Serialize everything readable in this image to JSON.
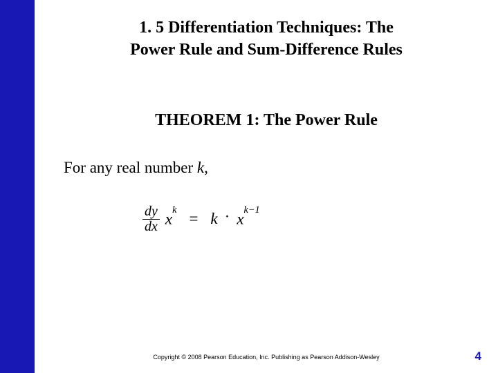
{
  "sidebar": {
    "color": "#1818b5"
  },
  "title": {
    "line1": "1. 5 Differentiation Techniques: The",
    "line2": "Power Rule and Sum-Difference Rules"
  },
  "theorem": {
    "heading": "THEOREM 1:  The Power Rule"
  },
  "intro": {
    "prefix": "For any real number ",
    "var": "k",
    "suffix": ","
  },
  "formula": {
    "frac_num": "dy",
    "frac_den": "dx",
    "base1": "x",
    "exp1": "k",
    "equals": "=",
    "coef": "k",
    "dot": "·",
    "base2": "x",
    "exp2": "k−1"
  },
  "footer": {
    "copyright": "Copyright © 2008 Pearson Education, Inc.  Publishing as Pearson Addison-Wesley"
  },
  "page": {
    "number": "4",
    "color": "#1818b5"
  }
}
